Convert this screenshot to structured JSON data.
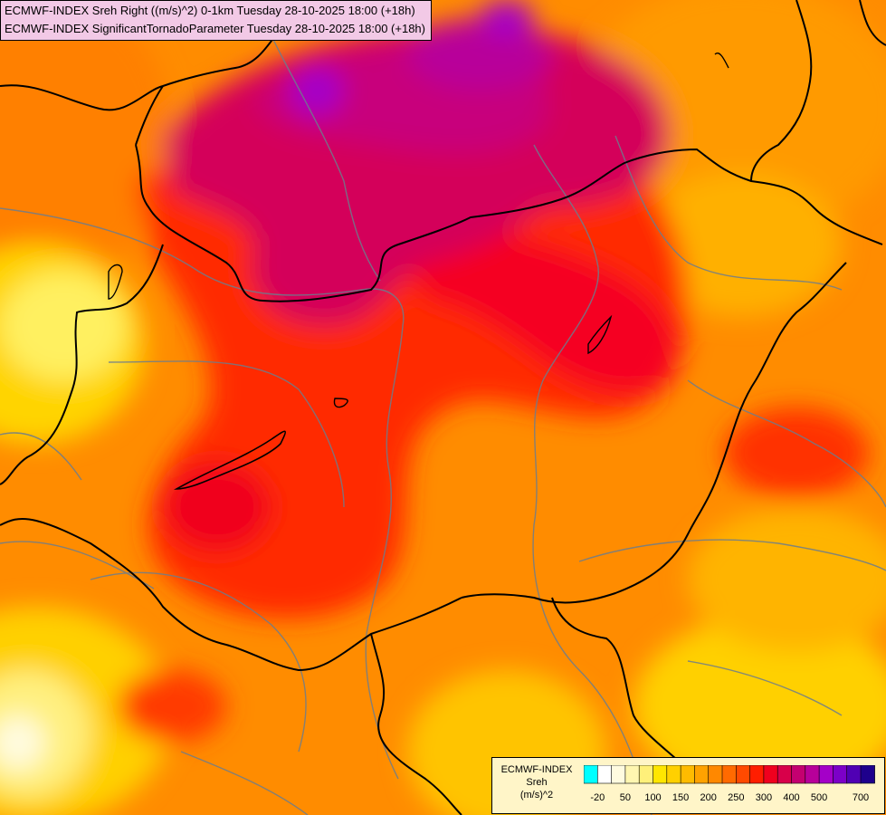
{
  "header": {
    "line1": "ECMWF-INDEX Sreh Right ((m/s)^2) 0-1km Tuesday 28-10-2025 18:00 (+18h)",
    "line2": "ECMWF-INDEX SignificantTornadoParameter Tuesday 28-10-2025 18:00 (+18h)"
  },
  "legend": {
    "title1": "ECMWF-INDEX",
    "title2": "Sreh",
    "title3": "(m/s)^2",
    "colors": [
      "#00ffff",
      "#ffffff",
      "#fffbe0",
      "#fff6b0",
      "#fff07a",
      "#ffe600",
      "#ffd000",
      "#ffbb00",
      "#ffa200",
      "#ff8800",
      "#ff6a00",
      "#ff4a00",
      "#ff1e00",
      "#f0001e",
      "#d8004a",
      "#c40070",
      "#b8009a",
      "#a400c8",
      "#7c00c8",
      "#5000b4",
      "#1e008c"
    ],
    "labels": [
      "-20",
      "50",
      "100",
      "150",
      "200",
      "250",
      "300",
      "400",
      "500",
      "700"
    ]
  },
  "map": {
    "description_colors": {
      "high": "#d8006e",
      "very_high": "#b000d0",
      "mid": "#ff2400",
      "low": "#ff8a00",
      "very_low": "#ffe000"
    }
  }
}
